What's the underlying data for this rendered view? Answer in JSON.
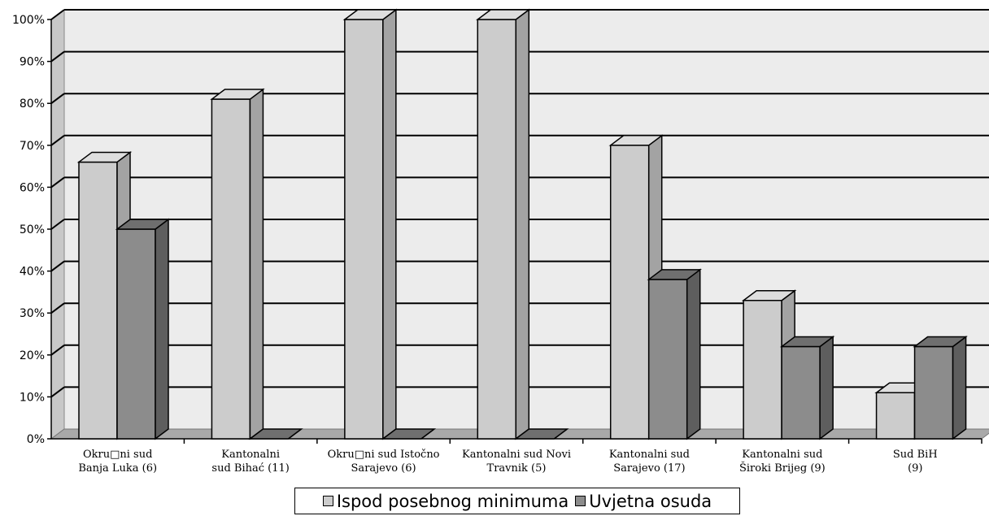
{
  "chart_data": {
    "type": "bar",
    "title": "",
    "xlabel": "",
    "ylabel": "",
    "ylim": [
      0,
      100
    ],
    "ytick_labels": [
      "0%",
      "10%",
      "20%",
      "30%",
      "40%",
      "50%",
      "60%",
      "70%",
      "80%",
      "90%",
      "100%"
    ],
    "categories": [
      [
        "Okru□ni sud",
        "Banja Luka (6)"
      ],
      [
        "Kantonalni",
        "sud Bihać (11)"
      ],
      [
        "Okru□ni sud Istočno",
        "Sarajevo (6)"
      ],
      [
        "Kantonalni sud Novi",
        "Travnik (5)"
      ],
      [
        "Kantonalni sud",
        "Sarajevo (17)"
      ],
      [
        "Kantonalni sud",
        "Široki Brijeg (9)"
      ],
      [
        "Sud BiH",
        "(9)"
      ]
    ],
    "series": [
      {
        "name": "Ispod posebnog minimuma",
        "color": "#cccccc",
        "values": [
          66,
          81,
          100,
          100,
          70,
          33,
          11
        ]
      },
      {
        "name": "Uvjetna osuda",
        "color": "#8c8c8c",
        "values": [
          50,
          0,
          0,
          0,
          38,
          22,
          22
        ]
      }
    ],
    "grid": true,
    "legend_position": "bottom",
    "style": "3d-clustered-column"
  },
  "legend": {
    "items": [
      {
        "label": "Ispod posebnog minimuma",
        "color": "#cccccc"
      },
      {
        "label": "Uvjetna osuda",
        "color": "#8c8c8c"
      }
    ]
  }
}
